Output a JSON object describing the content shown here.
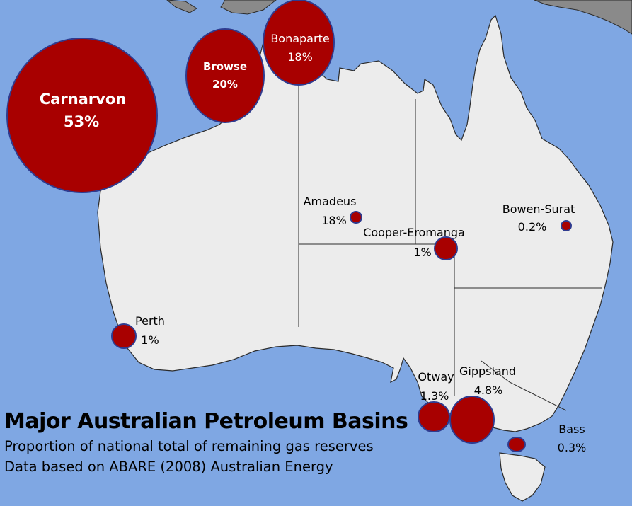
{
  "colors": {
    "ocean": "#7fa7e3",
    "land": "#ececec",
    "coast": "#2b2b2b",
    "basin_fill": "#a80000",
    "basin_stroke": "#2f3b8f"
  },
  "title": "Major Australian Petroleum Basins",
  "subtitle_1": "Proportion of national total of remaining gas reserves",
  "subtitle_2": "Data based on ABARE (2008) Australian Energy",
  "basins": [
    {
      "id": "carnarvon",
      "name": "Carnarvon",
      "share": "53%"
    },
    {
      "id": "browse",
      "name": "Browse",
      "share": "20%"
    },
    {
      "id": "bonaparte",
      "name": "Bonaparte",
      "share": "18%"
    },
    {
      "id": "amadeus",
      "name": "Amadeus",
      "share": "18%"
    },
    {
      "id": "bowen-surat",
      "name": "Bowen-Surat",
      "share": "0.2%"
    },
    {
      "id": "cooper-eromanga",
      "name": "Cooper-Eromanga",
      "share": "1%"
    },
    {
      "id": "perth",
      "name": "Perth",
      "share": "1%"
    },
    {
      "id": "otway",
      "name": "Otway",
      "share": "1.3%"
    },
    {
      "id": "gippsland",
      "name": "Gippsland",
      "share": "4.8%"
    },
    {
      "id": "bass",
      "name": "Bass",
      "share": "0.3%"
    }
  ]
}
